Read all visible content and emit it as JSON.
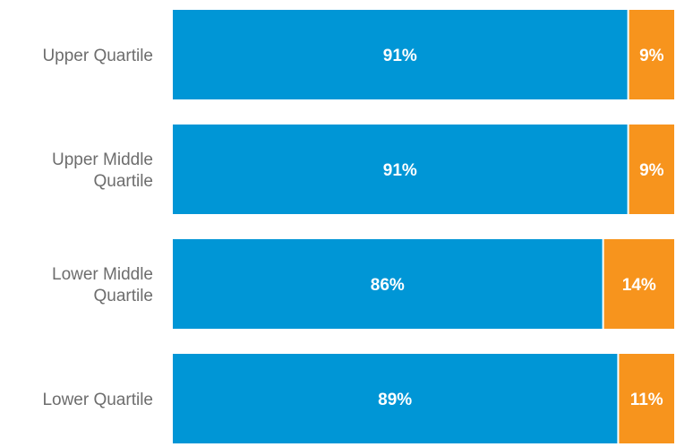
{
  "chart_data": {
    "type": "bar",
    "orientation": "horizontal",
    "stacked": true,
    "title": "",
    "xlabel": "",
    "ylabel": "",
    "xlim": [
      0,
      100
    ],
    "categories": [
      [
        "Upper Quartile"
      ],
      [
        "Upper Middle",
        "Quartile"
      ],
      [
        "Lower Middle",
        "Quartile"
      ],
      [
        "Lower Quartile"
      ]
    ],
    "series": [
      {
        "values": [
          91,
          91,
          86,
          89
        ],
        "labels": [
          "91%",
          "91%",
          "86%",
          "89%"
        ],
        "color": "#0096d6"
      },
      {
        "values": [
          9,
          9,
          14,
          11
        ],
        "labels": [
          "9%",
          "9%",
          "14%",
          "11%"
        ],
        "color": "#f7941d"
      }
    ],
    "legend": "none",
    "grid": false
  }
}
